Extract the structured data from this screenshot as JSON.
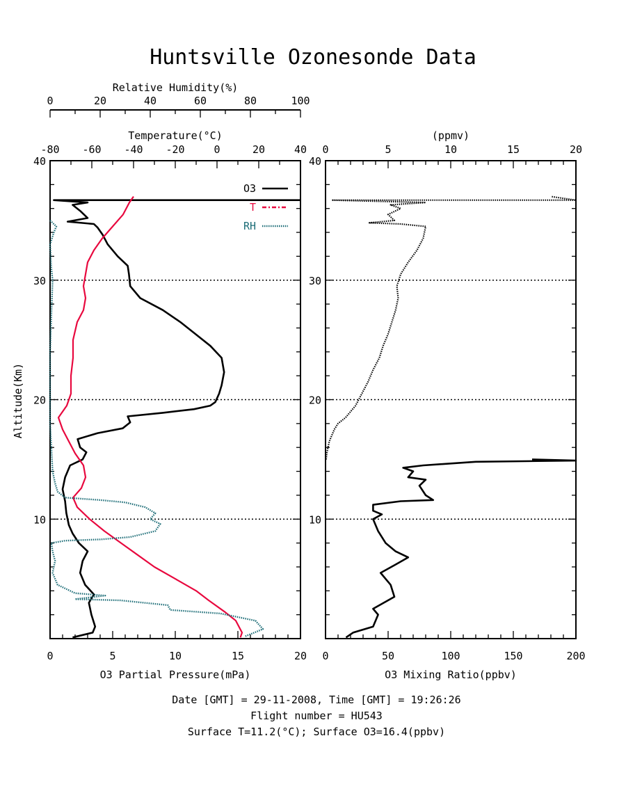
{
  "title": "Huntsville Ozonesonde Data",
  "footer": {
    "line1": "Date [GMT] = 29-11-2008,  Time [GMT] = 19:26:26",
    "line2": "Flight number = HU543",
    "line3": "Surface T=11.2(°C); Surface O3=16.4(ppbv)"
  },
  "colors": {
    "o3": "#000000",
    "t": "#e8083e",
    "rh": "#1e6e78"
  },
  "chart_data": [
    {
      "type": "line",
      "panel": "left",
      "ylabel": "Altitude(Km)",
      "ylim": [
        0,
        40
      ],
      "yticks": [
        10,
        20,
        30,
        40
      ],
      "axes": {
        "o3": {
          "label": "O3 Partial Pressure(mPa)",
          "range": [
            0,
            20
          ],
          "ticks": [
            0,
            5,
            10,
            15,
            20
          ]
        },
        "t": {
          "label": "Temperature(°C)",
          "range": [
            -80,
            40
          ],
          "ticks": [
            -80,
            -60,
            -40,
            -20,
            0,
            20,
            40
          ]
        },
        "rh": {
          "label": "Relative Humidity(%)",
          "range": [
            0,
            100
          ],
          "ticks": [
            0,
            20,
            40,
            60,
            80,
            100
          ]
        }
      },
      "legend": [
        "O3",
        "T",
        "RH"
      ],
      "grid": "dotted horizontal at 10, 20, 30 km",
      "series": [
        {
          "name": "O3",
          "axis": "o3",
          "points": [
            [
              1.8,
              0.1
            ],
            [
              3.4,
              0.5
            ],
            [
              3.6,
              1
            ],
            [
              3.3,
              2
            ],
            [
              3.1,
              3
            ],
            [
              3.5,
              3.7
            ],
            [
              2.8,
              4.5
            ],
            [
              2.4,
              5.5
            ],
            [
              2.6,
              6.5
            ],
            [
              3.0,
              7.3
            ],
            [
              2.3,
              8
            ],
            [
              1.8,
              8.8
            ],
            [
              1.5,
              9.5
            ],
            [
              1.3,
              10.5
            ],
            [
              1.2,
              11.5
            ],
            [
              1.0,
              12.5
            ],
            [
              1.2,
              13.5
            ],
            [
              1.6,
              14.5
            ],
            [
              2.6,
              15
            ],
            [
              2.9,
              15.6
            ],
            [
              2.4,
              16
            ],
            [
              2.2,
              16.7
            ],
            [
              3.8,
              17.2
            ],
            [
              5.8,
              17.6
            ],
            [
              6.4,
              18.1
            ],
            [
              6.2,
              18.6
            ],
            [
              9.0,
              18.9
            ],
            [
              11.5,
              19.2
            ],
            [
              12.8,
              19.5
            ],
            [
              13.2,
              19.8
            ],
            [
              13.5,
              20.5
            ],
            [
              13.7,
              21.2
            ],
            [
              13.9,
              22.3
            ],
            [
              13.7,
              23.5
            ],
            [
              12.8,
              24.5
            ],
            [
              11.6,
              25.5
            ],
            [
              10.4,
              26.5
            ],
            [
              9.0,
              27.5
            ],
            [
              7.2,
              28.5
            ],
            [
              6.4,
              29.5
            ],
            [
              6.3,
              30.5
            ],
            [
              6.2,
              31.2
            ],
            [
              5.4,
              32
            ],
            [
              4.6,
              33
            ],
            [
              4.2,
              33.8
            ],
            [
              3.8,
              34.4
            ],
            [
              3.5,
              34.7
            ],
            [
              1.4,
              34.9
            ],
            [
              3.0,
              35.2
            ],
            [
              2.4,
              35.8
            ],
            [
              1.8,
              36.3
            ],
            [
              3.0,
              36.5
            ],
            [
              0.3,
              36.7
            ],
            [
              20,
              36.7
            ]
          ]
        },
        {
          "name": "T",
          "axis": "t",
          "points": [
            [
              11.2,
              0.1
            ],
            [
              12,
              0.5
            ],
            [
              9,
              1.5
            ],
            [
              4,
              2.2
            ],
            [
              -4,
              3.2
            ],
            [
              -10,
              4
            ],
            [
              -20,
              5
            ],
            [
              -30,
              6
            ],
            [
              -38,
              7
            ],
            [
              -46,
              8
            ],
            [
              -54,
              9
            ],
            [
              -61,
              10
            ],
            [
              -67,
              11
            ],
            [
              -69,
              11.8
            ],
            [
              -65,
              12.6
            ],
            [
              -63,
              13.5
            ],
            [
              -64,
              14.5
            ],
            [
              -68,
              15.5
            ],
            [
              -71,
              16.5
            ],
            [
              -74,
              17.5
            ],
            [
              -76,
              18.5
            ],
            [
              -72,
              19.5
            ],
            [
              -70,
              20.5
            ],
            [
              -70,
              22
            ],
            [
              -69,
              23.5
            ],
            [
              -69,
              25
            ],
            [
              -67,
              26.5
            ],
            [
              -64,
              27.5
            ],
            [
              -63,
              28.5
            ],
            [
              -64,
              29.5
            ],
            [
              -63,
              30.5
            ],
            [
              -62,
              31.5
            ],
            [
              -59,
              32.5
            ],
            [
              -55,
              33.5
            ],
            [
              -50,
              34.5
            ],
            [
              -45,
              35.5
            ],
            [
              -42,
              36.5
            ],
            [
              -40,
              37
            ]
          ]
        },
        {
          "name": "RH",
          "axis": "rh",
          "points": [
            [
              78,
              0.2
            ],
            [
              85,
              0.8
            ],
            [
              82,
              1.5
            ],
            [
              68,
              2.1
            ],
            [
              48,
              2.4
            ],
            [
              47,
              2.8
            ],
            [
              28,
              3.2
            ],
            [
              10,
              3.3
            ],
            [
              22,
              3.6
            ],
            [
              10,
              3.8
            ],
            [
              3,
              4.5
            ],
            [
              1,
              5.5
            ],
            [
              2,
              6.5
            ],
            [
              1,
              7.3
            ],
            [
              0.5,
              8
            ],
            [
              6,
              8.2
            ],
            [
              20,
              8.3
            ],
            [
              32,
              8.5
            ],
            [
              42,
              9
            ],
            [
              44,
              9.6
            ],
            [
              40,
              10
            ],
            [
              42,
              10.5
            ],
            [
              38,
              11
            ],
            [
              30,
              11.4
            ],
            [
              20,
              11.6
            ],
            [
              6,
              11.8
            ],
            [
              3,
              12.3
            ],
            [
              2,
              13
            ],
            [
              1,
              14
            ],
            [
              0.5,
              16
            ],
            [
              0,
              18
            ],
            [
              0,
              24
            ],
            [
              1,
              30
            ],
            [
              0.5,
              31
            ],
            [
              0,
              33
            ],
            [
              1.5,
              34
            ],
            [
              2.5,
              34.5
            ],
            [
              0,
              35
            ]
          ]
        }
      ]
    },
    {
      "type": "line",
      "panel": "right",
      "ylim": [
        0,
        40
      ],
      "yticks": [
        10,
        20,
        30,
        40
      ],
      "axes": {
        "ppbv": {
          "label": "O3 Mixing Ratio(ppbv)",
          "range": [
            0,
            200
          ],
          "ticks": [
            0,
            50,
            100,
            150,
            200
          ]
        },
        "ppmv": {
          "label": "(ppmv)",
          "range": [
            0,
            20
          ],
          "ticks": [
            0,
            5,
            10,
            15,
            20
          ]
        }
      },
      "grid": "dotted horizontal at 10, 20, 30 km",
      "series": [
        {
          "name": "O3 ppbv",
          "axis": "ppbv",
          "points": [
            [
              16.4,
              0.1
            ],
            [
              22,
              0.5
            ],
            [
              38,
              1
            ],
            [
              42,
              2
            ],
            [
              38,
              2.5
            ],
            [
              55,
              3.5
            ],
            [
              52,
              4.5
            ],
            [
              44,
              5.5
            ],
            [
              56,
              6.2
            ],
            [
              66,
              6.8
            ],
            [
              56,
              7.3
            ],
            [
              48,
              8
            ],
            [
              42,
              9
            ],
            [
              38,
              10
            ],
            [
              45,
              10.4
            ],
            [
              38,
              10.7
            ],
            [
              38,
              11.2
            ],
            [
              60,
              11.5
            ],
            [
              86,
              11.6
            ],
            [
              80,
              12
            ],
            [
              75,
              12.8
            ],
            [
              80,
              13.3
            ],
            [
              66,
              13.5
            ],
            [
              70,
              14
            ],
            [
              62,
              14.3
            ],
            [
              78,
              14.5
            ],
            [
              120,
              14.8
            ],
            [
              200,
              14.9
            ],
            [
              165,
              15
            ]
          ]
        },
        {
          "name": "O3 ppmv",
          "axis": "ppmv",
          "points": [
            [
              0.05,
              15
            ],
            [
              0.1,
              15.5
            ],
            [
              0.3,
              16.5
            ],
            [
              0.7,
              17.5
            ],
            [
              1.0,
              18
            ],
            [
              1.6,
              18.5
            ],
            [
              2.4,
              19.5
            ],
            [
              2.9,
              20.5
            ],
            [
              3.4,
              21.5
            ],
            [
              3.8,
              22.5
            ],
            [
              4.3,
              23.5
            ],
            [
              4.6,
              24.5
            ],
            [
              5.0,
              25.5
            ],
            [
              5.3,
              26.5
            ],
            [
              5.6,
              27.5
            ],
            [
              5.8,
              28.5
            ],
            [
              5.7,
              29.5
            ],
            [
              6.0,
              30.5
            ],
            [
              6.6,
              31.5
            ],
            [
              7.3,
              32.5
            ],
            [
              7.8,
              33.5
            ],
            [
              8.0,
              34.5
            ],
            [
              6.0,
              34.7
            ],
            [
              3.5,
              34.8
            ],
            [
              5.5,
              35
            ],
            [
              5.0,
              35.5
            ],
            [
              6.0,
              36
            ],
            [
              5.2,
              36.3
            ],
            [
              8.0,
              36.5
            ],
            [
              0.5,
              36.7
            ],
            [
              20,
              36.7
            ],
            [
              18,
              37
            ]
          ]
        }
      ]
    }
  ]
}
